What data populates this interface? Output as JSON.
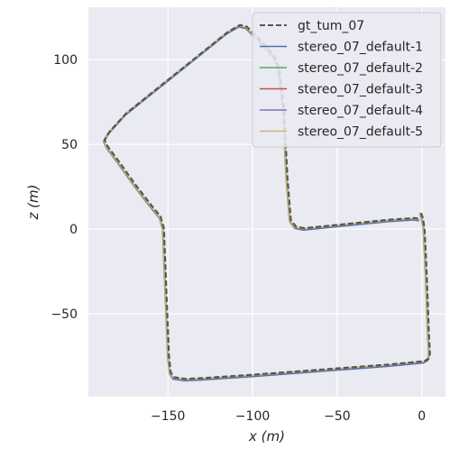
{
  "chart_data": {
    "type": "line",
    "title": "",
    "xlabel": "x (m)",
    "ylabel": "z (m)",
    "xlim": [
      -197,
      14
    ],
    "ylim": [
      -99,
      131
    ],
    "x_ticks": [
      {
        "value": -150,
        "label": "−150"
      },
      {
        "value": -100,
        "label": "−100"
      },
      {
        "value": -50,
        "label": "−50"
      },
      {
        "value": 0,
        "label": "0"
      }
    ],
    "y_ticks": [
      {
        "value": -50,
        "label": "−50"
      },
      {
        "value": 0,
        "label": "0"
      },
      {
        "value": 50,
        "label": "50"
      },
      {
        "value": 100,
        "label": "100"
      }
    ],
    "grid": true,
    "legend_position": "top-right",
    "series": [
      {
        "name": "gt_tum_07",
        "color": "#555555",
        "dashed": true,
        "offset": [
          0.6,
          0.5
        ]
      },
      {
        "name": "stereo_07_default-1",
        "color": "#4c72b0",
        "dashed": false,
        "offset": [
          0.0,
          -0.6
        ]
      },
      {
        "name": "stereo_07_default-2",
        "color": "#55a868",
        "dashed": false,
        "offset": [
          -0.2,
          0.0
        ]
      },
      {
        "name": "stereo_07_default-3",
        "color": "#c44e52",
        "dashed": false,
        "offset": [
          0.0,
          0.0
        ]
      },
      {
        "name": "stereo_07_default-4",
        "color": "#8172b2",
        "dashed": false,
        "offset": [
          0.2,
          0.0
        ]
      },
      {
        "name": "stereo_07_default-5",
        "color": "#ccb974",
        "dashed": false,
        "offset": [
          0.0,
          0.2
        ]
      }
    ],
    "trajectory": [
      [
        -1,
        9
      ],
      [
        0,
        6
      ],
      [
        1,
        0
      ],
      [
        2,
        -20
      ],
      [
        3,
        -45
      ],
      [
        3.5,
        -60
      ],
      [
        4,
        -70
      ],
      [
        4.2,
        -74
      ],
      [
        3.5,
        -77
      ],
      [
        1,
        -78.5
      ],
      [
        -20,
        -80.5
      ],
      [
        -60,
        -83.5
      ],
      [
        -100,
        -86.5
      ],
      [
        -130,
        -88.5
      ],
      [
        -140,
        -89
      ],
      [
        -147,
        -88
      ],
      [
        -149,
        -85
      ],
      [
        -150,
        -75
      ],
      [
        -151,
        -50
      ],
      [
        -152,
        -25
      ],
      [
        -153,
        0
      ],
      [
        -155,
        7
      ],
      [
        -160,
        13
      ],
      [
        -170,
        26
      ],
      [
        -180,
        40
      ],
      [
        -186,
        48
      ],
      [
        -188,
        52
      ],
      [
        -185,
        57
      ],
      [
        -175,
        68
      ],
      [
        -150,
        88
      ],
      [
        -130,
        104
      ],
      [
        -115,
        116
      ],
      [
        -108,
        120
      ],
      [
        -104,
        119
      ],
      [
        -95,
        110
      ],
      [
        -88,
        102
      ],
      [
        -85,
        95
      ],
      [
        -82,
        70
      ],
      [
        -80,
        30
      ],
      [
        -78,
        5
      ],
      [
        -75,
        1
      ],
      [
        -70,
        0
      ],
      [
        -60,
        1
      ],
      [
        -40,
        3
      ],
      [
        -20,
        5
      ],
      [
        -5,
        6
      ],
      [
        -2,
        5.5
      ]
    ]
  }
}
